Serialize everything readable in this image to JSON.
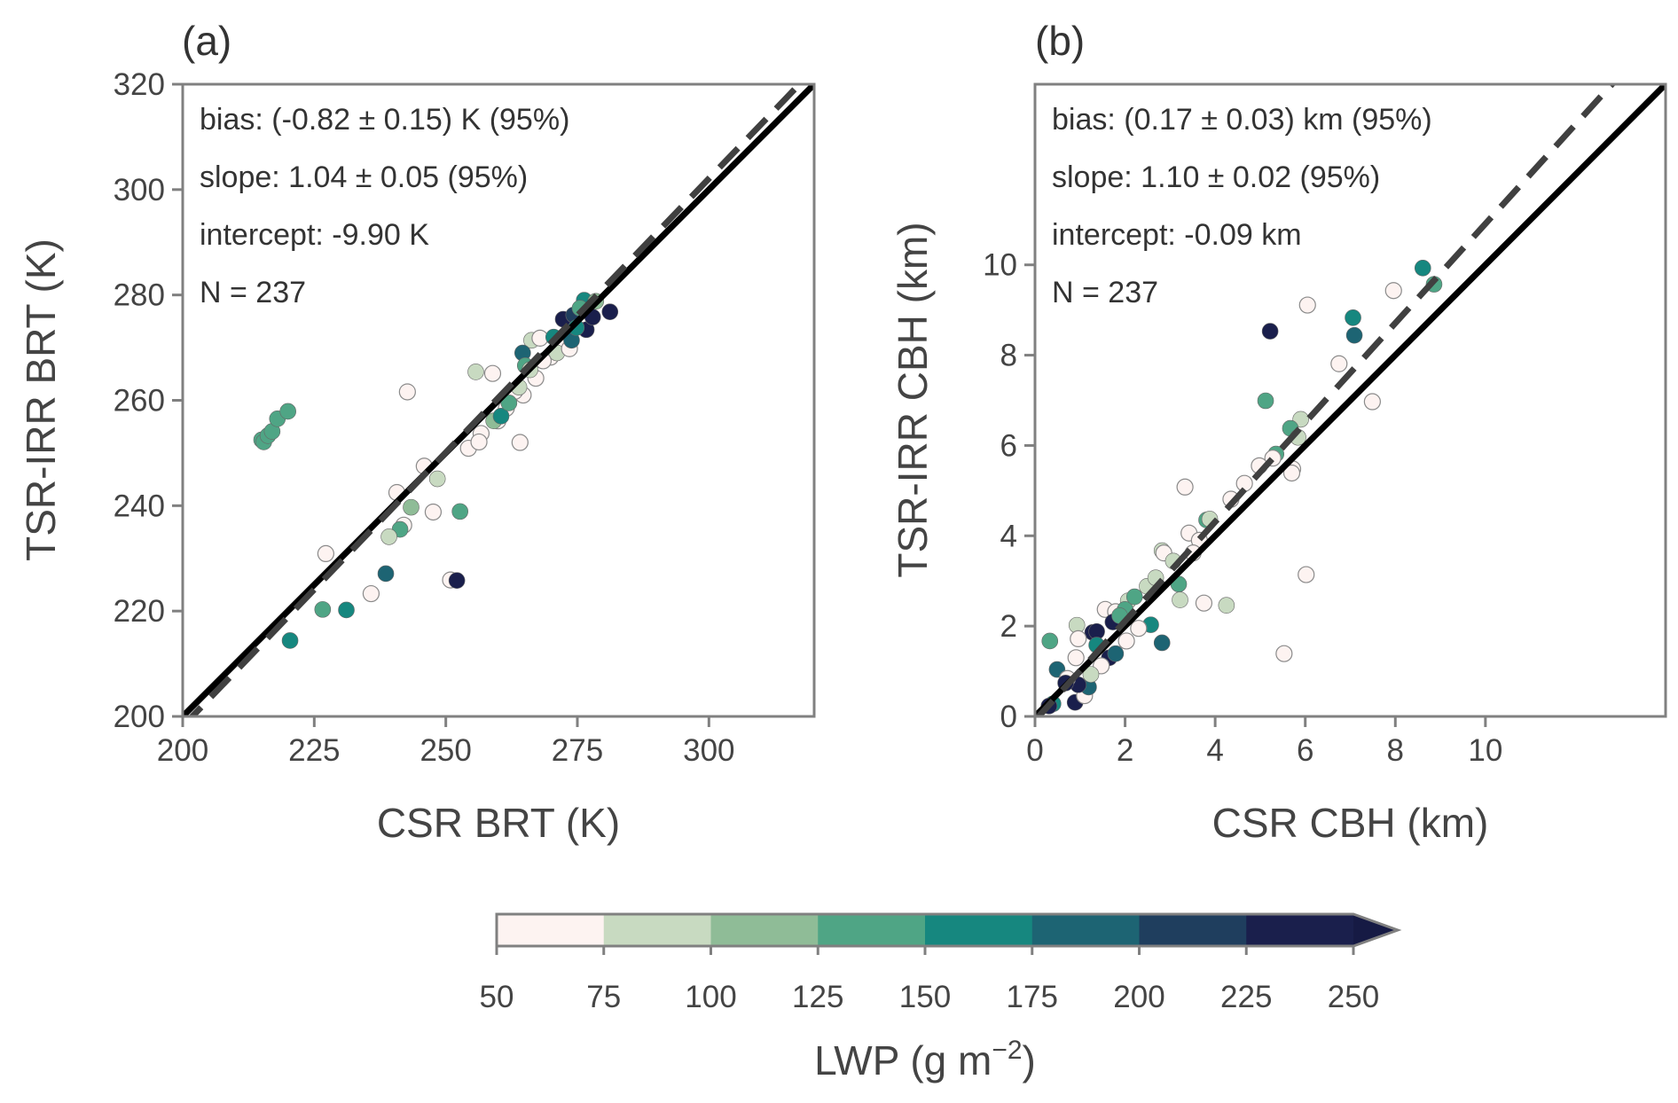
{
  "chart_data": [
    {
      "type": "scatter",
      "panel_label": "(a)",
      "xlabel": "CSR BRT (K)",
      "ylabel": "TSR-IRR BRT (K)",
      "xlim": [
        200,
        320
      ],
      "ylim": [
        200,
        320
      ],
      "xticks": [
        200,
        225,
        250,
        275,
        300
      ],
      "yticks": [
        200,
        220,
        240,
        260,
        280,
        300,
        320
      ],
      "annotations": [
        "bias: (-0.82 ± 0.15) K (95%)",
        "slope: 1.04 ± 0.05 (95%)",
        "intercept: -9.90 K",
        "N = 237"
      ],
      "one_to_one_line": true,
      "fit_line": {
        "slope": 1.04,
        "intercept": -9.9
      },
      "points": [
        [
          215.0,
          252.5,
          140
        ],
        [
          215.4,
          252.1,
          140
        ],
        [
          216.2,
          253.3,
          140
        ],
        [
          217.0,
          254.1,
          140
        ],
        [
          218.0,
          256.5,
          140
        ],
        [
          220.0,
          257.9,
          140
        ],
        [
          242.7,
          261.6,
          60
        ],
        [
          255.7,
          265.4,
          85
        ],
        [
          258.9,
          265.1,
          60
        ],
        [
          264.1,
          252.0,
          60
        ],
        [
          245.9,
          247.5,
          60
        ],
        [
          248.4,
          245.1,
          85
        ],
        [
          240.7,
          242.5,
          60
        ],
        [
          243.4,
          239.7,
          110
        ],
        [
          247.6,
          238.8,
          60
        ],
        [
          252.7,
          238.9,
          140
        ],
        [
          242.0,
          236.3,
          60
        ],
        [
          241.3,
          235.5,
          140
        ],
        [
          239.2,
          234.1,
          85
        ],
        [
          227.2,
          230.9,
          60
        ],
        [
          238.6,
          227.1,
          185
        ],
        [
          250.9,
          225.9,
          60
        ],
        [
          252.1,
          225.8,
          240
        ],
        [
          235.8,
          223.3,
          60
        ],
        [
          226.6,
          220.3,
          140
        ],
        [
          231.1,
          220.2,
          160
        ],
        [
          220.4,
          214.4,
          160
        ],
        [
          269.9,
          268.2,
          60
        ],
        [
          267.1,
          264.2,
          60
        ],
        [
          264.7,
          261.0,
          60
        ],
        [
          261.5,
          258.5,
          60
        ],
        [
          259.9,
          256.1,
          60
        ],
        [
          256.7,
          253.7,
          60
        ],
        [
          254.3,
          250.9,
          60
        ],
        [
          256.3,
          252.1,
          60
        ],
        [
          263.1,
          261.7,
          60
        ],
        [
          271.9,
          270.6,
          60
        ],
        [
          271.1,
          269.0,
          85
        ],
        [
          273.5,
          269.8,
          60
        ],
        [
          266.3,
          271.4,
          85
        ],
        [
          263.9,
          262.5,
          85
        ],
        [
          259.1,
          256.1,
          110
        ],
        [
          260.5,
          257.0,
          160
        ],
        [
          262.0,
          259.5,
          140
        ],
        [
          264.6,
          269.0,
          185
        ],
        [
          265.1,
          266.6,
          140
        ],
        [
          267.9,
          271.8,
          60
        ],
        [
          273.9,
          271.4,
          185
        ],
        [
          270.5,
          272.0,
          160
        ],
        [
          272.3,
          275.4,
          240
        ],
        [
          276.3,
          279.0,
          160
        ],
        [
          281.2,
          276.8,
          240
        ],
        [
          276.7,
          273.4,
          240
        ],
        [
          274.3,
          276.2,
          210
        ],
        [
          277.9,
          275.8,
          240
        ],
        [
          275.5,
          277.5,
          140
        ],
        [
          278.5,
          278.8,
          110
        ],
        [
          274.8,
          273.8,
          160
        ],
        [
          268.5,
          267.5,
          60
        ],
        [
          266.0,
          265.8,
          85
        ]
      ]
    },
    {
      "type": "scatter",
      "panel_label": "(b)",
      "xlabel": "CSR CBH (km)",
      "ylabel": "TSR-IRR CBH (km)",
      "xlim": [
        0,
        14
      ],
      "ylim": [
        0,
        14
      ],
      "xticks": [
        0,
        2,
        4,
        6,
        8,
        10
      ],
      "yticks": [
        0,
        2,
        4,
        6,
        8,
        10
      ],
      "annotations": [
        "bias: (0.17 ± 0.03) km (95%)",
        "slope: 1.10 ± 0.02 (95%)",
        "intercept: -0.09 km",
        "N = 237"
      ],
      "one_to_one_line": true,
      "fit_line": {
        "slope": 1.1,
        "intercept": -0.09
      },
      "points": [
        [
          8.61,
          9.93,
          160
        ],
        [
          8.86,
          9.57,
          140
        ],
        [
          7.96,
          9.43,
          60
        ],
        [
          6.05,
          9.11,
          60
        ],
        [
          7.06,
          8.83,
          160
        ],
        [
          7.09,
          8.44,
          185
        ],
        [
          5.22,
          8.53,
          240
        ],
        [
          6.75,
          7.81,
          60
        ],
        [
          7.49,
          6.97,
          60
        ],
        [
          5.12,
          6.99,
          140
        ],
        [
          5.9,
          6.58,
          85
        ],
        [
          5.67,
          6.38,
          140
        ],
        [
          5.84,
          6.18,
          85
        ],
        [
          5.35,
          5.81,
          140
        ],
        [
          5.28,
          5.72,
          60
        ],
        [
          5.72,
          5.48,
          60
        ],
        [
          5.7,
          5.39,
          60
        ],
        [
          4.98,
          5.55,
          60
        ],
        [
          3.33,
          5.08,
          60
        ],
        [
          4.65,
          5.16,
          60
        ],
        [
          4.35,
          4.81,
          60
        ],
        [
          3.81,
          4.35,
          140
        ],
        [
          3.88,
          4.37,
          85
        ],
        [
          3.42,
          4.06,
          60
        ],
        [
          3.65,
          3.9,
          60
        ],
        [
          3.51,
          3.62,
          60
        ],
        [
          6.02,
          3.14,
          60
        ],
        [
          2.82,
          3.67,
          85
        ],
        [
          2.86,
          3.62,
          60
        ],
        [
          3.07,
          3.44,
          85
        ],
        [
          3.19,
          2.93,
          140
        ],
        [
          3.22,
          2.58,
          85
        ],
        [
          3.75,
          2.51,
          60
        ],
        [
          4.25,
          2.46,
          85
        ],
        [
          5.53,
          1.39,
          60
        ],
        [
          2.57,
          2.03,
          160
        ],
        [
          2.82,
          1.63,
          185
        ],
        [
          0.33,
          1.67,
          140
        ],
        [
          0.49,
          1.04,
          185
        ],
        [
          0.89,
          0.31,
          240
        ],
        [
          1.1,
          0.46,
          60
        ],
        [
          2.07,
          2.56,
          85
        ],
        [
          1.56,
          2.37,
          60
        ],
        [
          1.79,
          2.32,
          60
        ],
        [
          2.0,
          2.37,
          140
        ],
        [
          1.73,
          2.09,
          240
        ],
        [
          1.28,
          1.86,
          240
        ],
        [
          1.37,
          1.88,
          240
        ],
        [
          0.93,
          2.02,
          85
        ],
        [
          0.96,
          1.72,
          60
        ],
        [
          1.65,
          1.3,
          240
        ],
        [
          1.37,
          1.58,
          160
        ],
        [
          1.47,
          1.12,
          60
        ],
        [
          1.19,
          0.65,
          185
        ],
        [
          0.96,
          0.7,
          240
        ],
        [
          0.72,
          0.84,
          60
        ],
        [
          0.68,
          0.74,
          240
        ],
        [
          1.79,
          1.39,
          185
        ],
        [
          2.49,
          2.88,
          85
        ],
        [
          2.68,
          3.07,
          85
        ],
        [
          2.3,
          1.95,
          60
        ],
        [
          2.03,
          1.67,
          60
        ],
        [
          1.24,
          0.93,
          85
        ],
        [
          0.4,
          0.28,
          160
        ],
        [
          0.31,
          0.23,
          240
        ],
        [
          0.91,
          1.3,
          60
        ],
        [
          1.88,
          2.23,
          140
        ],
        [
          2.21,
          2.65,
          140
        ]
      ]
    }
  ],
  "colorbar": {
    "label": "LWP (g m",
    "label_exp": "−2",
    "label_close": ")",
    "ticks": [
      "50",
      "75",
      "100",
      "125",
      "150",
      "175",
      "200",
      "225",
      "250"
    ],
    "bounds": [
      50,
      75,
      100,
      125,
      150,
      175,
      200,
      225,
      250
    ],
    "colors": [
      "#fdf3f1",
      "#c8dac1",
      "#8fbc97",
      "#4fa585",
      "#16877f",
      "#1d6473",
      "#1f3e5e",
      "#1a1f4c"
    ],
    "extend_color": "#161a44"
  }
}
